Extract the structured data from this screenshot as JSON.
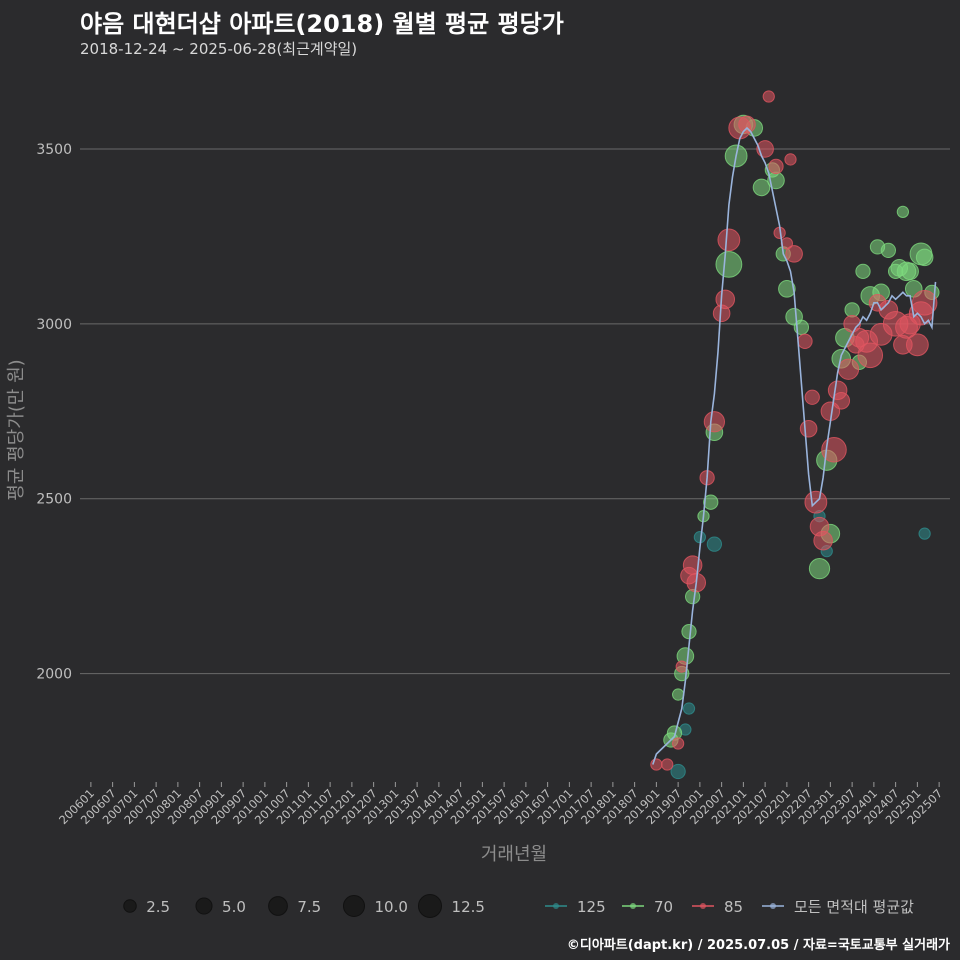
{
  "header": {
    "title": "야음 대현더샵 아파트(2018) 월별 평균 평당가",
    "subtitle": "2018-12-24 ~ 2025-06-28(최근계약일)"
  },
  "footer": {
    "credit": "©디아파트(dapt.kr) / 2025.07.05 / 자료=국토교통부 실거래가"
  },
  "chart_data": {
    "type": "scatter",
    "title": "야음 대현더샵 아파트(2018) 월별 평균 평당가",
    "subtitle": "2018-12-24 ~ 2025-06-28(최근계약일)",
    "xlabel": "거래년월",
    "ylabel": "평균 평당가(만 원)",
    "x_range": [
      "2005-10",
      "2025-10"
    ],
    "ylim": [
      1690,
      3720
    ],
    "y_ticks": [
      2000,
      2500,
      3000,
      3500
    ],
    "x_ticks": [
      "200601",
      "200607",
      "200701",
      "200707",
      "200801",
      "200807",
      "200901",
      "200907",
      "201001",
      "201007",
      "201101",
      "201107",
      "201201",
      "201207",
      "201301",
      "201307",
      "201401",
      "201407",
      "201501",
      "201507",
      "201601",
      "201607",
      "201701",
      "201707",
      "201801",
      "201807",
      "201901",
      "201907",
      "202001",
      "202007",
      "202101",
      "202107",
      "202201",
      "202207",
      "202301",
      "202307",
      "202401",
      "202407",
      "202501",
      "202507"
    ],
    "grid": true,
    "size_legend": {
      "values": [
        2.5,
        5.0,
        7.5,
        10.0,
        12.5
      ],
      "labels": [
        "2.5",
        "5.0",
        "7.5",
        "10.0",
        "12.5"
      ]
    },
    "legend": [
      "125",
      "70",
      "85",
      "모든 면적대 평균값"
    ],
    "legend_position": "bottom",
    "colors": {
      "125": "#2e8c8c",
      "70": "#7dd87d",
      "85": "#e05560",
      "avg": "#9ab4dc",
      "grid": "#6a6a6a",
      "axis_text": "#bfbfbf"
    },
    "series": [
      {
        "name": "125",
        "points": [
          [
            "2019-07",
            1720,
            2
          ],
          [
            "2019-09",
            1840,
            1
          ],
          [
            "2019-10",
            1900,
            1
          ],
          [
            "2020-01",
            2390,
            1
          ],
          [
            "2020-05",
            2370,
            2
          ],
          [
            "2022-10",
            2450,
            1
          ],
          [
            "2022-12",
            2350,
            1
          ],
          [
            "2025-03",
            2400,
            1
          ]
        ]
      },
      {
        "name": "70",
        "points": [
          [
            "2019-05",
            1810,
            2
          ],
          [
            "2019-06",
            1830,
            2
          ],
          [
            "2019-07",
            1940,
            1
          ],
          [
            "2019-08",
            2000,
            2
          ],
          [
            "2019-09",
            2050,
            3
          ],
          [
            "2019-10",
            2120,
            2
          ],
          [
            "2019-11",
            2220,
            2
          ],
          [
            "2020-02",
            2450,
            1
          ],
          [
            "2020-04",
            2490,
            2
          ],
          [
            "2020-05",
            2690,
            3
          ],
          [
            "2020-09",
            3170,
            9
          ],
          [
            "2020-11",
            3480,
            6
          ],
          [
            "2021-01",
            3570,
            4
          ],
          [
            "2021-04",
            3560,
            3
          ],
          [
            "2021-06",
            3390,
            3
          ],
          [
            "2021-09",
            3440,
            2
          ],
          [
            "2021-10",
            3410,
            3
          ],
          [
            "2021-12",
            3200,
            2
          ],
          [
            "2022-01",
            3100,
            3
          ],
          [
            "2022-03",
            3020,
            3
          ],
          [
            "2022-05",
            2990,
            2
          ],
          [
            "2022-10",
            2300,
            5
          ],
          [
            "2022-12",
            2610,
            5
          ],
          [
            "2023-01",
            2400,
            4
          ],
          [
            "2023-04",
            2900,
            4
          ],
          [
            "2023-05",
            2960,
            4
          ],
          [
            "2023-07",
            3040,
            2
          ],
          [
            "2023-09",
            2890,
            2
          ],
          [
            "2023-10",
            3150,
            2
          ],
          [
            "2023-12",
            3080,
            4
          ],
          [
            "2024-02",
            3220,
            2
          ],
          [
            "2024-03",
            3090,
            3
          ],
          [
            "2024-05",
            3210,
            2
          ],
          [
            "2024-07",
            3150,
            2
          ],
          [
            "2024-08",
            3160,
            3
          ],
          [
            "2024-09",
            3320,
            1
          ],
          [
            "2024-10",
            3150,
            4
          ],
          [
            "2024-11",
            3150,
            3
          ],
          [
            "2024-12",
            3100,
            3
          ],
          [
            "2025-02",
            3200,
            6
          ],
          [
            "2025-03",
            3190,
            3
          ],
          [
            "2025-05",
            3090,
            2
          ]
        ]
      },
      {
        "name": "85",
        "points": [
          [
            "2019-01",
            1740,
            1
          ],
          [
            "2019-04",
            1740,
            1
          ],
          [
            "2019-07",
            1800,
            1
          ],
          [
            "2019-08",
            2020,
            1
          ],
          [
            "2019-10",
            2280,
            3
          ],
          [
            "2019-11",
            2310,
            4
          ],
          [
            "2019-12",
            2260,
            4
          ],
          [
            "2020-03",
            2560,
            2
          ],
          [
            "2020-05",
            2720,
            5
          ],
          [
            "2020-07",
            3030,
            3
          ],
          [
            "2020-08",
            3070,
            4
          ],
          [
            "2020-09",
            3240,
            6
          ],
          [
            "2020-12",
            3560,
            6
          ],
          [
            "2021-02",
            3570,
            3
          ],
          [
            "2021-07",
            3500,
            3
          ],
          [
            "2021-08",
            3650,
            1
          ],
          [
            "2021-10",
            3450,
            2
          ],
          [
            "2021-11",
            3260,
            1
          ],
          [
            "2022-01",
            3230,
            1
          ],
          [
            "2022-02",
            3470,
            1
          ],
          [
            "2022-03",
            3200,
            3
          ],
          [
            "2022-06",
            2950,
            2
          ],
          [
            "2022-07",
            2700,
            3
          ],
          [
            "2022-08",
            2790,
            2
          ],
          [
            "2022-09",
            2490,
            6
          ],
          [
            "2022-10",
            2420,
            4
          ],
          [
            "2022-11",
            2380,
            4
          ],
          [
            "2023-01",
            2750,
            4
          ],
          [
            "2023-02",
            2640,
            8
          ],
          [
            "2023-03",
            2810,
            4
          ],
          [
            "2023-04",
            2780,
            3
          ],
          [
            "2023-06",
            2870,
            5
          ],
          [
            "2023-07",
            3000,
            3
          ],
          [
            "2023-08",
            2940,
            3
          ],
          [
            "2023-09",
            2960,
            4
          ],
          [
            "2023-11",
            2950,
            6
          ],
          [
            "2023-12",
            2910,
            8
          ],
          [
            "2024-02",
            3060,
            3
          ],
          [
            "2024-03",
            2970,
            6
          ],
          [
            "2024-05",
            3040,
            4
          ],
          [
            "2024-07",
            3000,
            8
          ],
          [
            "2024-09",
            2940,
            4
          ],
          [
            "2024-10",
            2990,
            6
          ],
          [
            "2024-11",
            3000,
            5
          ],
          [
            "2025-01",
            2940,
            6
          ],
          [
            "2025-02",
            3030,
            7
          ],
          [
            "2025-03",
            3060,
            8
          ]
        ]
      }
    ],
    "average_line": [
      [
        "2018-12",
        1740
      ],
      [
        "2019-01",
        1770
      ],
      [
        "2019-02",
        1780
      ],
      [
        "2019-04",
        1800
      ],
      [
        "2019-06",
        1820
      ],
      [
        "2019-07",
        1860
      ],
      [
        "2019-08",
        1900
      ],
      [
        "2019-09",
        1980
      ],
      [
        "2019-10",
        2080
      ],
      [
        "2019-11",
        2180
      ],
      [
        "2019-12",
        2260
      ],
      [
        "2020-01",
        2360
      ],
      [
        "2020-02",
        2450
      ],
      [
        "2020-03",
        2560
      ],
      [
        "2020-04",
        2720
      ],
      [
        "2020-05",
        2800
      ],
      [
        "2020-06",
        2920
      ],
      [
        "2020-07",
        3080
      ],
      [
        "2020-08",
        3200
      ],
      [
        "2020-09",
        3340
      ],
      [
        "2020-10",
        3420
      ],
      [
        "2020-11",
        3480
      ],
      [
        "2020-12",
        3530
      ],
      [
        "2021-01",
        3550
      ],
      [
        "2021-02",
        3560
      ],
      [
        "2021-03",
        3550
      ],
      [
        "2021-04",
        3530
      ],
      [
        "2021-05",
        3510
      ],
      [
        "2021-06",
        3480
      ],
      [
        "2021-07",
        3460
      ],
      [
        "2021-08",
        3430
      ],
      [
        "2021-09",
        3380
      ],
      [
        "2021-10",
        3330
      ],
      [
        "2021-11",
        3280
      ],
      [
        "2021-12",
        3200
      ],
      [
        "2022-01",
        3180
      ],
      [
        "2022-02",
        3150
      ],
      [
        "2022-03",
        3090
      ],
      [
        "2022-04",
        2960
      ],
      [
        "2022-05",
        2830
      ],
      [
        "2022-06",
        2700
      ],
      [
        "2022-07",
        2570
      ],
      [
        "2022-08",
        2480
      ],
      [
        "2022-09",
        2490
      ],
      [
        "2022-10",
        2500
      ],
      [
        "2022-11",
        2560
      ],
      [
        "2022-12",
        2650
      ],
      [
        "2023-01",
        2720
      ],
      [
        "2023-02",
        2790
      ],
      [
        "2023-03",
        2860
      ],
      [
        "2023-04",
        2910
      ],
      [
        "2023-05",
        2930
      ],
      [
        "2023-06",
        2950
      ],
      [
        "2023-07",
        2970
      ],
      [
        "2023-08",
        2990
      ],
      [
        "2023-09",
        3000
      ],
      [
        "2023-10",
        3020
      ],
      [
        "2023-11",
        3010
      ],
      [
        "2023-12",
        3030
      ],
      [
        "2024-01",
        3060
      ],
      [
        "2024-02",
        3060
      ],
      [
        "2024-03",
        3040
      ],
      [
        "2024-04",
        3050
      ],
      [
        "2024-05",
        3060
      ],
      [
        "2024-06",
        3080
      ],
      [
        "2024-07",
        3070
      ],
      [
        "2024-08",
        3080
      ],
      [
        "2024-09",
        3090
      ],
      [
        "2024-10",
        3080
      ],
      [
        "2024-11",
        3080
      ],
      [
        "2024-12",
        3020
      ],
      [
        "2025-01",
        3030
      ],
      [
        "2025-02",
        3020
      ],
      [
        "2025-03",
        3000
      ],
      [
        "2025-04",
        3010
      ],
      [
        "2025-05",
        2990
      ],
      [
        "2025-06",
        3120
      ]
    ]
  }
}
